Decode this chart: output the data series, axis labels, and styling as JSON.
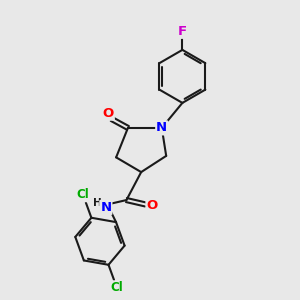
{
  "background_color": "#e8e8e8",
  "bond_color": "#1a1a1a",
  "bond_width": 1.5,
  "atom_colors": {
    "O": "#ff0000",
    "N": "#0000ff",
    "Cl": "#00aa00",
    "F": "#cc00cc",
    "C": "#1a1a1a"
  },
  "font_size": 8.5
}
